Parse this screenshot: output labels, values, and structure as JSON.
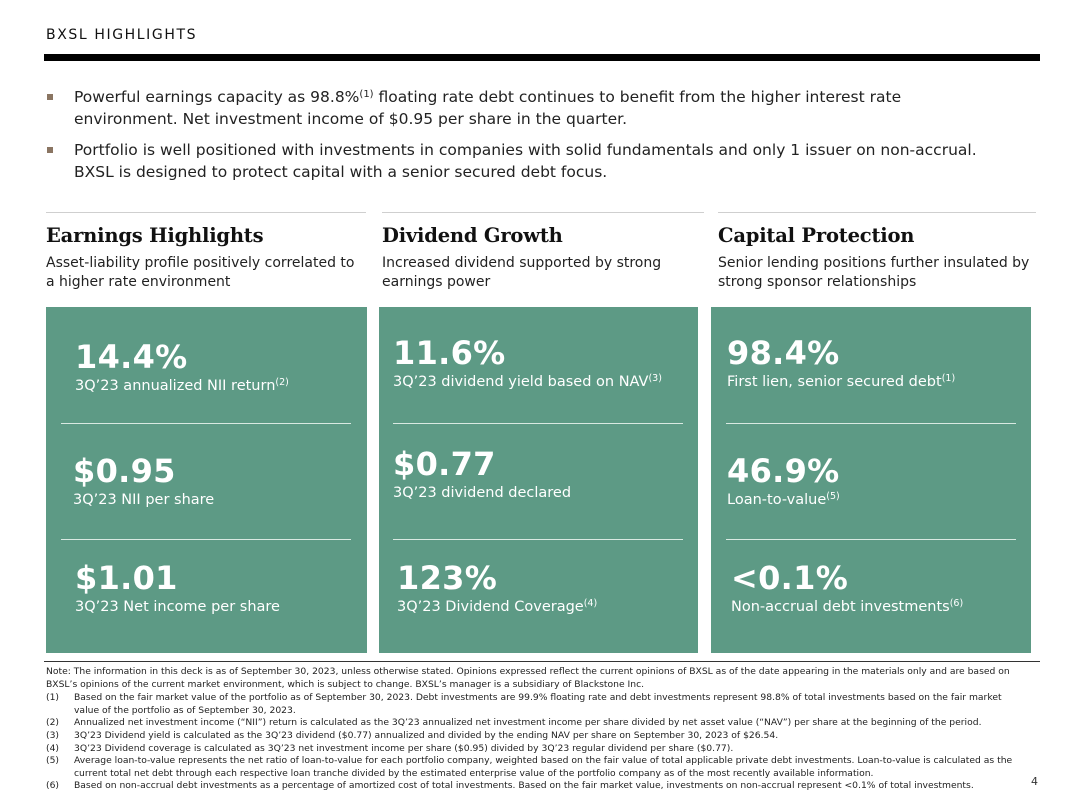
{
  "header": {
    "title": "BXSL HIGHLIGHTS"
  },
  "bullets": [
    {
      "pre": "Powerful earnings capacity as 98.8%",
      "sup": "(1)",
      "post": " floating rate debt continues to benefit from the higher interest rate environment. Net investment income of $0.95 per share in the quarter."
    },
    {
      "pre": "Portfolio is well positioned with investments in companies with solid fundamentals and only 1 issuer on non-accrual. BXSL is designed to protect capital with a senior secured debt focus.",
      "sup": "",
      "post": ""
    }
  ],
  "columns": [
    {
      "heading": "Earnings Highlights",
      "subtitle": "Asset-liability profile positively correlated to a higher rate environment",
      "metrics": [
        {
          "value": "14.4%",
          "label": "3Q’23 annualized NII return",
          "sup": "(2)"
        },
        {
          "value": "$0.95",
          "label": "3Q’23 NII per share",
          "sup": ""
        },
        {
          "value": "$1.01",
          "label": "3Q’23 Net income per share",
          "sup": ""
        }
      ]
    },
    {
      "heading": "Dividend Growth",
      "subtitle": "Increased dividend supported by strong earnings power",
      "metrics": [
        {
          "value": "11.6%",
          "label": "3Q’23 dividend yield based on NAV",
          "sup": "(3)"
        },
        {
          "value": "$0.77",
          "label": "3Q’23 dividend declared",
          "sup": ""
        },
        {
          "value": "123%",
          "label": "3Q’23 Dividend Coverage",
          "sup": "(4)"
        }
      ]
    },
    {
      "heading": "Capital Protection",
      "subtitle": "Senior lending positions further insulated by strong sponsor relationships",
      "metrics": [
        {
          "value": "98.4%",
          "label": "First lien, senior secured debt",
          "sup": "(1)"
        },
        {
          "value": "46.9%",
          "label": "Loan-to-value",
          "sup": "(5)"
        },
        {
          "value": "<0.1%",
          "label": "Non-accrual debt investments",
          "sup": "(6)"
        }
      ]
    }
  ],
  "notes": {
    "intro": "Note: The information in this deck is as of September 30, 2023, unless otherwise stated. Opinions expressed reflect the current opinions of BXSL as of the date appearing in the materials only and are based on BXSL’s opinions of the current market environment, which is subject to change. BXSL’s manager is a subsidiary of Blackstone Inc.",
    "footnotes": [
      {
        "num": "(1)",
        "text": "Based on the fair market value of the portfolio as of September 30, 2023. Debt investments are 99.9% floating rate and debt investments represent 98.8% of total investments based on the fair market value of the portfolio as of September 30, 2023."
      },
      {
        "num": "(2)",
        "text": "Annualized net investment income (“NII”) return is calculated as the 3Q’23 annualized net investment income per share divided by net asset value (“NAV”) per share at the beginning of the period."
      },
      {
        "num": "(3)",
        "text": "3Q’23 Dividend yield is calculated as the 3Q’23 dividend ($0.77) annualized and divided by the ending NAV per share on September 30, 2023 of $26.54."
      },
      {
        "num": "(4)",
        "text": "3Q’23 Dividend coverage is calculated as 3Q’23 net investment income per share ($0.95) divided by 3Q’23 regular dividend per share ($0.77)."
      },
      {
        "num": "(5)",
        "text": "Average loan-to-value represents the net ratio of loan-to-value for each portfolio company, weighted based on the fair value of total applicable private debt investments. Loan-to-value is calculated as the current total net debt through each respective loan tranche divided by the estimated enterprise value of the portfolio company as of the most recently available information."
      },
      {
        "num": "(6)",
        "text": "Based on non-accrual debt investments as a percentage of amortized cost of total investments. Based on the fair market value, investments on non-accrual represent <0.1% of total investments."
      }
    ]
  },
  "page": {
    "number": "4"
  },
  "colors": {
    "panel": "#5d9a85",
    "bullet": "#8a7562",
    "divider": "#d9e9e2"
  }
}
